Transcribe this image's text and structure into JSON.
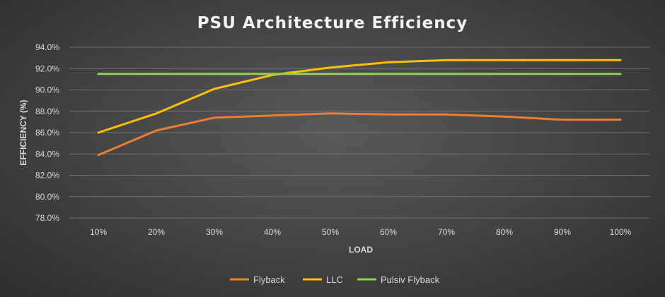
{
  "chart_data": {
    "type": "line",
    "title": "PSU Architecture Efficiency",
    "xlabel": "LOAD",
    "ylabel": "EFFICIENCY (%)",
    "categories": [
      "10%",
      "20%",
      "30%",
      "40%",
      "50%",
      "60%",
      "70%",
      "80%",
      "90%",
      "100%"
    ],
    "ylim": [
      78.0,
      94.0
    ],
    "yticks": [
      "78.0%",
      "80.0%",
      "82.0%",
      "84.0%",
      "86.0%",
      "88.0%",
      "90.0%",
      "92.0%",
      "94.0%"
    ],
    "grid": true,
    "legend_position": "bottom",
    "series": [
      {
        "name": "Flyback",
        "color": "#ed7d31",
        "values": [
          83.9,
          86.2,
          87.4,
          87.6,
          87.8,
          87.7,
          87.7,
          87.5,
          87.2,
          87.2
        ]
      },
      {
        "name": "LLC",
        "color": "#ffc000",
        "values": [
          86.0,
          87.8,
          90.1,
          91.4,
          92.1,
          92.6,
          92.8,
          92.8,
          92.8,
          92.8
        ]
      },
      {
        "name": "Pulsiv Flyback",
        "color": "#92d050",
        "values": [
          91.5,
          91.5,
          91.5,
          91.5,
          91.5,
          91.5,
          91.5,
          91.5,
          91.5,
          91.5
        ]
      }
    ]
  }
}
